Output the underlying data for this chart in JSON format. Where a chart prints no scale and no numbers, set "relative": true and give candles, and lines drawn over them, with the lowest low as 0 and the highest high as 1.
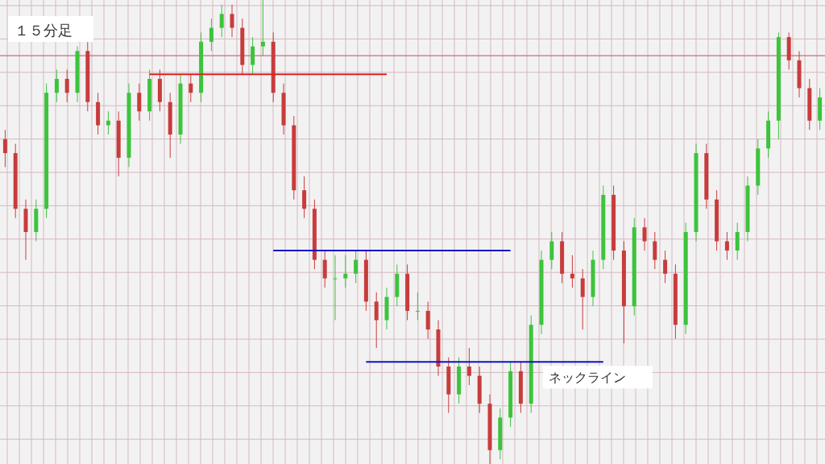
{
  "chart_data": {
    "type": "candlestick",
    "title": "１５分足",
    "relative": true,
    "grid": true,
    "legend": false,
    "categories": [
      null,
      null,
      null,
      null,
      null,
      null,
      null,
      null,
      null,
      null,
      null,
      null,
      null,
      null,
      null,
      null,
      null,
      null,
      null,
      null,
      null,
      null,
      null,
      null,
      null,
      null,
      null,
      null,
      null,
      null,
      null,
      null,
      null,
      null,
      null,
      null,
      null,
      null,
      null,
      null,
      null,
      null,
      null,
      null,
      null,
      null,
      null,
      null,
      null,
      null,
      null,
      null,
      null,
      null,
      null,
      null,
      null,
      null,
      null,
      null,
      null,
      null,
      null,
      null,
      null,
      null,
      null,
      null,
      null,
      null,
      null,
      null,
      null,
      null,
      null,
      null,
      null,
      null,
      null,
      null
    ],
    "ohlc": [
      [
        0.7,
        0.72,
        0.64,
        0.67
      ],
      [
        0.67,
        0.69,
        0.53,
        0.55
      ],
      [
        0.55,
        0.57,
        0.44,
        0.5
      ],
      [
        0.5,
        0.57,
        0.48,
        0.55
      ],
      [
        0.55,
        0.82,
        0.53,
        0.8
      ],
      [
        0.8,
        0.85,
        0.78,
        0.83
      ],
      [
        0.83,
        0.85,
        0.78,
        0.8
      ],
      [
        0.8,
        0.9,
        0.78,
        0.89
      ],
      [
        0.89,
        0.91,
        0.76,
        0.78
      ],
      [
        0.78,
        0.8,
        0.71,
        0.73
      ],
      [
        0.73,
        0.76,
        0.71,
        0.74
      ],
      [
        0.74,
        0.76,
        0.62,
        0.66
      ],
      [
        0.66,
        0.82,
        0.64,
        0.8
      ],
      [
        0.8,
        0.82,
        0.74,
        0.76
      ],
      [
        0.76,
        0.85,
        0.74,
        0.83
      ],
      [
        0.83,
        0.85,
        0.76,
        0.78
      ],
      [
        0.78,
        0.8,
        0.66,
        0.71
      ],
      [
        0.71,
        0.84,
        0.69,
        0.82
      ],
      [
        0.82,
        0.84,
        0.78,
        0.8
      ],
      [
        0.8,
        0.93,
        0.78,
        0.91
      ],
      [
        0.91,
        0.96,
        0.89,
        0.94
      ],
      [
        0.94,
        0.99,
        0.92,
        0.97
      ],
      [
        0.97,
        0.99,
        0.92,
        0.94
      ],
      [
        0.94,
        0.96,
        0.84,
        0.86
      ],
      [
        0.86,
        0.92,
        0.84,
        0.9
      ],
      [
        0.9,
        1.0,
        0.88,
        0.91
      ],
      [
        0.91,
        0.93,
        0.78,
        0.8
      ],
      [
        0.8,
        0.82,
        0.71,
        0.73
      ],
      [
        0.73,
        0.75,
        0.57,
        0.59
      ],
      [
        0.59,
        0.62,
        0.53,
        0.55
      ],
      [
        0.55,
        0.57,
        0.42,
        0.44
      ],
      [
        0.44,
        0.46,
        0.38,
        0.4
      ],
      [
        0.4,
        0.45,
        0.31,
        0.4
      ],
      [
        0.4,
        0.45,
        0.38,
        0.41
      ],
      [
        0.41,
        0.46,
        0.39,
        0.44
      ],
      [
        0.44,
        0.46,
        0.33,
        0.35
      ],
      [
        0.35,
        0.37,
        0.25,
        0.31
      ],
      [
        0.31,
        0.38,
        0.29,
        0.36
      ],
      [
        0.36,
        0.43,
        0.34,
        0.41
      ],
      [
        0.41,
        0.43,
        0.31,
        0.33
      ],
      [
        0.33,
        0.37,
        0.31,
        0.33
      ],
      [
        0.33,
        0.35,
        0.27,
        0.29
      ],
      [
        0.29,
        0.31,
        0.19,
        0.21
      ],
      [
        0.21,
        0.23,
        0.11,
        0.15
      ],
      [
        0.15,
        0.23,
        0.13,
        0.21
      ],
      [
        0.21,
        0.25,
        0.17,
        0.19
      ],
      [
        0.19,
        0.21,
        0.11,
        0.13
      ],
      [
        0.13,
        0.15,
        0.0,
        0.03
      ],
      [
        0.03,
        0.12,
        0.01,
        0.1
      ],
      [
        0.1,
        0.22,
        0.08,
        0.2
      ],
      [
        0.2,
        0.22,
        0.11,
        0.13
      ],
      [
        0.13,
        0.32,
        0.11,
        0.3
      ],
      [
        0.3,
        0.46,
        0.28,
        0.44
      ],
      [
        0.44,
        0.5,
        0.42,
        0.48
      ],
      [
        0.48,
        0.5,
        0.39,
        0.41
      ],
      [
        0.41,
        0.45,
        0.38,
        0.4
      ],
      [
        0.4,
        0.42,
        0.29,
        0.36
      ],
      [
        0.36,
        0.46,
        0.34,
        0.44
      ],
      [
        0.44,
        0.6,
        0.42,
        0.58
      ],
      [
        0.58,
        0.6,
        0.44,
        0.46
      ],
      [
        0.46,
        0.48,
        0.26,
        0.34
      ],
      [
        0.34,
        0.53,
        0.32,
        0.51
      ],
      [
        0.51,
        0.53,
        0.46,
        0.48
      ],
      [
        0.48,
        0.5,
        0.42,
        0.44
      ],
      [
        0.44,
        0.46,
        0.39,
        0.41
      ],
      [
        0.41,
        0.43,
        0.27,
        0.3
      ],
      [
        0.3,
        0.52,
        0.28,
        0.5
      ],
      [
        0.5,
        0.69,
        0.48,
        0.67
      ],
      [
        0.67,
        0.69,
        0.55,
        0.57
      ],
      [
        0.57,
        0.59,
        0.46,
        0.48
      ],
      [
        0.48,
        0.5,
        0.44,
        0.46
      ],
      [
        0.46,
        0.52,
        0.44,
        0.5
      ],
      [
        0.5,
        0.62,
        0.48,
        0.6
      ],
      [
        0.6,
        0.7,
        0.58,
        0.68
      ],
      [
        0.68,
        0.76,
        0.66,
        0.74
      ],
      [
        0.74,
        0.93,
        0.7,
        0.92
      ],
      [
        0.92,
        0.93,
        0.85,
        0.87
      ],
      [
        0.87,
        0.89,
        0.79,
        0.81
      ],
      [
        0.81,
        0.83,
        0.72,
        0.74
      ],
      [
        0.74,
        0.81,
        0.72,
        0.79
      ]
    ],
    "ref_lines": [
      {
        "axis": "y",
        "value": 0.88,
        "color": "#c07080"
      }
    ],
    "series": [
      {
        "type": "line",
        "color": "#e02020",
        "values": [
          null,
          null,
          null,
          null,
          null,
          null,
          null,
          null,
          null,
          null,
          null,
          null,
          null,
          null,
          0.84,
          0.84,
          0.84,
          0.84,
          0.84,
          0.84,
          0.84,
          0.84,
          0.84,
          0.84,
          0.84,
          0.84,
          0.84,
          0.84,
          0.84,
          0.84,
          0.84,
          0.84,
          0.84,
          0.84,
          0.84,
          0.84,
          0.84,
          0.84,
          null,
          null,
          null,
          null,
          null,
          null,
          null,
          null,
          null,
          null,
          null,
          null,
          null,
          null,
          null,
          null,
          null,
          null,
          null,
          null,
          null,
          null,
          null,
          null,
          null,
          null,
          null,
          null,
          null,
          null,
          null,
          null,
          null,
          null,
          null,
          null,
          null,
          null,
          null,
          null,
          null,
          null
        ]
      },
      {
        "type": "line",
        "color": "#1010c8",
        "values": [
          null,
          null,
          null,
          null,
          null,
          null,
          null,
          null,
          null,
          null,
          null,
          null,
          null,
          null,
          null,
          null,
          null,
          null,
          null,
          null,
          null,
          null,
          null,
          null,
          null,
          null,
          0.46,
          0.46,
          0.46,
          0.46,
          0.46,
          0.46,
          0.46,
          0.46,
          0.46,
          0.46,
          0.46,
          0.46,
          0.46,
          0.46,
          0.46,
          0.46,
          0.46,
          0.46,
          0.46,
          0.46,
          0.46,
          0.46,
          0.46,
          0.46,
          null,
          null,
          null,
          null,
          null,
          null,
          null,
          null,
          null,
          null,
          null,
          null,
          null,
          null,
          null,
          null,
          null,
          null,
          null,
          null,
          null,
          null,
          null,
          null,
          null,
          null,
          null,
          null,
          null,
          null
        ]
      },
      {
        "type": "line",
        "name": "ネックライン",
        "color": "#1010c8",
        "values": [
          null,
          null,
          null,
          null,
          null,
          null,
          null,
          null,
          null,
          null,
          null,
          null,
          null,
          null,
          null,
          null,
          null,
          null,
          null,
          null,
          null,
          null,
          null,
          null,
          null,
          null,
          null,
          null,
          null,
          null,
          null,
          null,
          null,
          null,
          null,
          0.22,
          0.22,
          0.22,
          0.22,
          0.22,
          0.22,
          0.22,
          0.22,
          0.22,
          0.22,
          0.22,
          0.22,
          0.22,
          0.22,
          0.22,
          0.22,
          0.22,
          0.22,
          0.22,
          0.22,
          0.22,
          0.22,
          0.22,
          0.22,
          null,
          null,
          null,
          null,
          null,
          null,
          null,
          null,
          null,
          null,
          null,
          null,
          null,
          null,
          null,
          null,
          null,
          null,
          null,
          null,
          null
        ]
      }
    ]
  }
}
